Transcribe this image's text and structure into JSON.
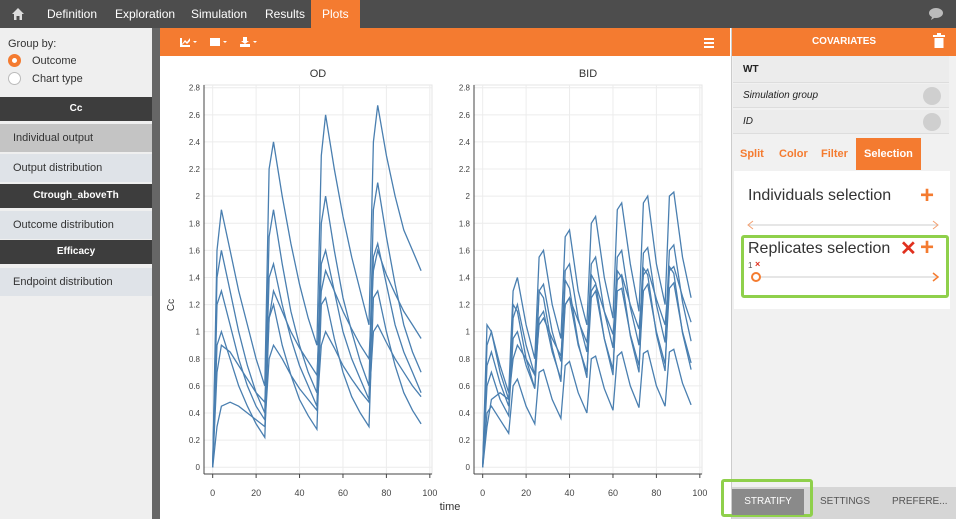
{
  "nav": {
    "tabs": [
      "Definition",
      "Exploration",
      "Simulation",
      "Results",
      "Plots"
    ]
  },
  "left_panel": {
    "group_by": "Group by:",
    "options": [
      "Outcome",
      "Chart type"
    ],
    "sections": [
      {
        "header": "Cc",
        "items": [
          "Individual output",
          "Output distribution"
        ]
      },
      {
        "header": "Ctrough_aboveTh",
        "items": [
          "Outcome distribution"
        ]
      },
      {
        "header": "Efficacy",
        "items": [
          "Endpoint distribution"
        ]
      }
    ]
  },
  "right_panel": {
    "title": "COVARIATES",
    "covariates": [
      "WT",
      "Simulation group",
      "ID"
    ],
    "tabs": [
      "Split",
      "Color",
      "Filter",
      "Selection"
    ],
    "individuals_selection": "Individuals selection",
    "replicates_selection": "Replicates selection",
    "replicate_tag": "1",
    "bottom_tabs": [
      "STRATIFY",
      "SETTINGS",
      "PREFERE..."
    ]
  },
  "chart_data": [
    {
      "type": "line",
      "title": "OD",
      "ylabel": "Cc",
      "xlabel": "time",
      "x": [
        0,
        2,
        4,
        8,
        12,
        16,
        20,
        24,
        26,
        28,
        32,
        36,
        40,
        44,
        48,
        50,
        52,
        56,
        60,
        64,
        68,
        72,
        74,
        76,
        80,
        84,
        88,
        92,
        96
      ],
      "xlim": [
        -4,
        101
      ],
      "xticks": [
        0,
        20,
        40,
        60,
        80,
        100
      ],
      "ylim": [
        -0.05,
        2.82
      ],
      "yticks": [
        0,
        0.2,
        0.4,
        0.6,
        0.8,
        1,
        1.2,
        1.4,
        1.6,
        1.8,
        2,
        2.2,
        2.4,
        2.6,
        2.8
      ],
      "grid": true,
      "series": [
        {
          "color": "#4a7fb0",
          "values": [
            0,
            1.6,
            1.9,
            1.6,
            1.3,
            1.05,
            0.8,
            0.6,
            2.2,
            2.4,
            2.0,
            1.65,
            1.35,
            1.1,
            0.9,
            2.3,
            2.6,
            2.2,
            1.85,
            1.55,
            1.3,
            1.05,
            2.4,
            2.67,
            2.3,
            2.0,
            1.75,
            1.6,
            1.45
          ]
        },
        {
          "color": "#4a7fb0",
          "values": [
            0,
            1.2,
            1.3,
            1.05,
            0.8,
            0.6,
            0.45,
            0.35,
            1.4,
            1.5,
            1.2,
            0.95,
            0.75,
            0.6,
            0.45,
            1.5,
            1.6,
            1.3,
            1.0,
            0.8,
            0.65,
            0.5,
            1.55,
            1.65,
            1.35,
            1.05,
            0.85,
            0.7,
            0.55
          ]
        },
        {
          "color": "#4a7fb0",
          "values": [
            0,
            0.3,
            0.45,
            0.48,
            0.45,
            0.4,
            0.35,
            0.3,
            0.8,
            0.9,
            0.8,
            0.68,
            0.58,
            0.5,
            0.42,
            0.9,
            1.0,
            0.88,
            0.75,
            0.65,
            0.56,
            0.48,
            1.0,
            1.05,
            0.92,
            0.8,
            0.7,
            0.6,
            0.52
          ]
        },
        {
          "color": "#4a7fb0",
          "values": [
            0,
            1.4,
            1.6,
            1.3,
            1.0,
            0.75,
            0.55,
            0.4,
            1.7,
            1.9,
            1.5,
            1.15,
            0.9,
            0.7,
            0.55,
            1.8,
            2.0,
            1.6,
            1.25,
            1.0,
            0.78,
            0.6,
            1.9,
            2.1,
            1.7,
            1.35,
            1.05,
            0.85,
            0.7
          ]
        },
        {
          "color": "#4a7fb0",
          "values": [
            0,
            0.9,
            1.0,
            0.8,
            0.6,
            0.45,
            0.32,
            0.22,
            1.1,
            1.2,
            0.9,
            0.68,
            0.5,
            0.38,
            0.28,
            1.2,
            1.25,
            0.95,
            0.7,
            0.52,
            0.4,
            0.3,
            1.25,
            1.3,
            1.0,
            0.75,
            0.55,
            0.42,
            0.32
          ]
        },
        {
          "color": "#4a7fb0",
          "values": [
            0,
            0.7,
            0.9,
            0.85,
            0.75,
            0.65,
            0.55,
            0.48,
            1.1,
            1.3,
            1.15,
            1.0,
            0.88,
            0.78,
            0.68,
            1.3,
            1.45,
            1.3,
            1.15,
            1.02,
            0.9,
            0.8,
            1.45,
            1.6,
            1.42,
            1.28,
            1.15,
            1.05,
            0.95
          ]
        }
      ]
    },
    {
      "type": "line",
      "title": "BID",
      "x": [
        0,
        2,
        4,
        8,
        12,
        14,
        16,
        20,
        24,
        26,
        28,
        32,
        36,
        38,
        40,
        44,
        48,
        50,
        52,
        56,
        60,
        62,
        64,
        68,
        72,
        74,
        76,
        80,
        84,
        86,
        88,
        92,
        96
      ],
      "xlim": [
        -4,
        101
      ],
      "xticks": [
        0,
        20,
        40,
        60,
        80,
        100
      ],
      "ylim": [
        -0.05,
        2.82
      ],
      "yticks": [
        0,
        0.2,
        0.4,
        0.6,
        0.8,
        1,
        1.2,
        1.4,
        1.6,
        1.8,
        2,
        2.2,
        2.4,
        2.6,
        2.8
      ],
      "grid": true,
      "series": [
        {
          "color": "#4a7fb0",
          "values": [
            0,
            0.9,
            1.0,
            0.75,
            0.55,
            1.3,
            1.4,
            1.05,
            0.8,
            1.55,
            1.6,
            1.2,
            0.95,
            1.7,
            1.75,
            1.3,
            1.05,
            1.8,
            1.85,
            1.4,
            1.1,
            1.9,
            1.95,
            1.5,
            1.15,
            1.95,
            2.0,
            1.5,
            1.2,
            2.0,
            2.03,
            1.55,
            1.25
          ]
        },
        {
          "color": "#4a7fb0",
          "values": [
            0,
            0.6,
            0.7,
            0.5,
            0.38,
            0.95,
            1.0,
            0.75,
            0.58,
            1.1,
            1.15,
            0.85,
            0.65,
            1.2,
            1.25,
            0.9,
            0.7,
            1.25,
            1.3,
            0.95,
            0.72,
            1.3,
            1.32,
            0.98,
            0.75,
            1.3,
            1.35,
            1.0,
            0.76,
            1.32,
            1.36,
            1.0,
            0.77
          ]
        },
        {
          "color": "#4a7fb0",
          "values": [
            0,
            0.4,
            0.45,
            0.35,
            0.25,
            0.6,
            0.65,
            0.45,
            0.32,
            0.7,
            0.72,
            0.5,
            0.36,
            0.75,
            0.78,
            0.55,
            0.4,
            0.8,
            0.82,
            0.58,
            0.42,
            0.82,
            0.85,
            0.6,
            0.44,
            0.84,
            0.86,
            0.6,
            0.45,
            0.85,
            0.87,
            0.62,
            0.46
          ]
        },
        {
          "color": "#4a7fb0",
          "values": [
            0,
            0.75,
            0.85,
            0.62,
            0.45,
            1.1,
            1.2,
            0.9,
            0.68,
            1.3,
            1.35,
            1.0,
            0.78,
            1.45,
            1.5,
            1.1,
            0.85,
            1.5,
            1.55,
            1.15,
            0.88,
            1.55,
            1.6,
            1.18,
            0.9,
            1.58,
            1.62,
            1.2,
            0.92,
            1.6,
            1.64,
            1.22,
            0.93
          ]
        },
        {
          "color": "#4a7fb0",
          "values": [
            0,
            0.3,
            0.5,
            0.55,
            0.5,
            0.8,
            0.9,
            0.8,
            0.68,
            1.05,
            1.1,
            0.95,
            0.82,
            1.2,
            1.25,
            1.08,
            0.92,
            1.3,
            1.35,
            1.15,
            0.98,
            1.38,
            1.42,
            1.2,
            1.02,
            1.42,
            1.46,
            1.24,
            1.05,
            1.45,
            1.48,
            1.26,
            1.07
          ]
        },
        {
          "color": "#4a7fb0",
          "values": [
            0,
            1.05,
            1.0,
            0.7,
            0.5,
            1.2,
            1.15,
            0.8,
            0.58,
            1.3,
            1.25,
            0.88,
            0.63,
            1.38,
            1.32,
            0.92,
            0.66,
            1.42,
            1.36,
            0.95,
            0.68,
            1.45,
            1.4,
            0.97,
            0.7,
            1.47,
            1.42,
            0.98,
            0.71,
            1.48,
            1.43,
            0.99,
            0.72
          ]
        }
      ]
    }
  ]
}
